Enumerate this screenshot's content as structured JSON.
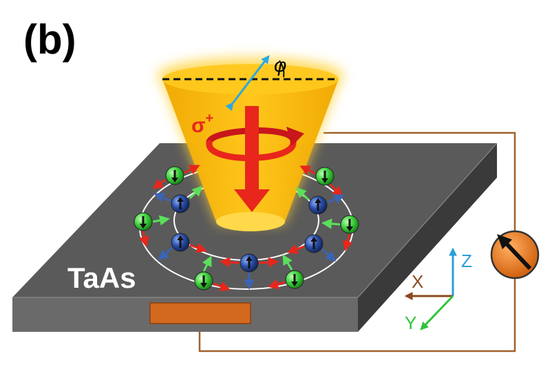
{
  "panel_label": "(b)",
  "material_label": "TaAs",
  "light": {
    "polarization_label": "σ",
    "polarization_sign": "+",
    "angle_label": "φ",
    "cone_color": "#f5b400",
    "arrow_color": "#e8261c"
  },
  "axes": {
    "x_label": "X",
    "y_label": "Y",
    "z_label": "Z",
    "x_color": "#8b4a1e",
    "y_color": "#2ec43a",
    "z_color": "#2a9fd8"
  },
  "electrons": {
    "spin_down_color": "#3ecf3e",
    "spin_up_color": "#1f3f8f",
    "ring_color": "#ffffff"
  },
  "circuit": {
    "wire_color": "#a0602a",
    "contact_color": "#d2691e",
    "meter_color": "#ee7a1a"
  },
  "slab": {
    "top_color": "#5a5a5a",
    "front_color": "#666666",
    "side_color": "#3b3b3b"
  }
}
